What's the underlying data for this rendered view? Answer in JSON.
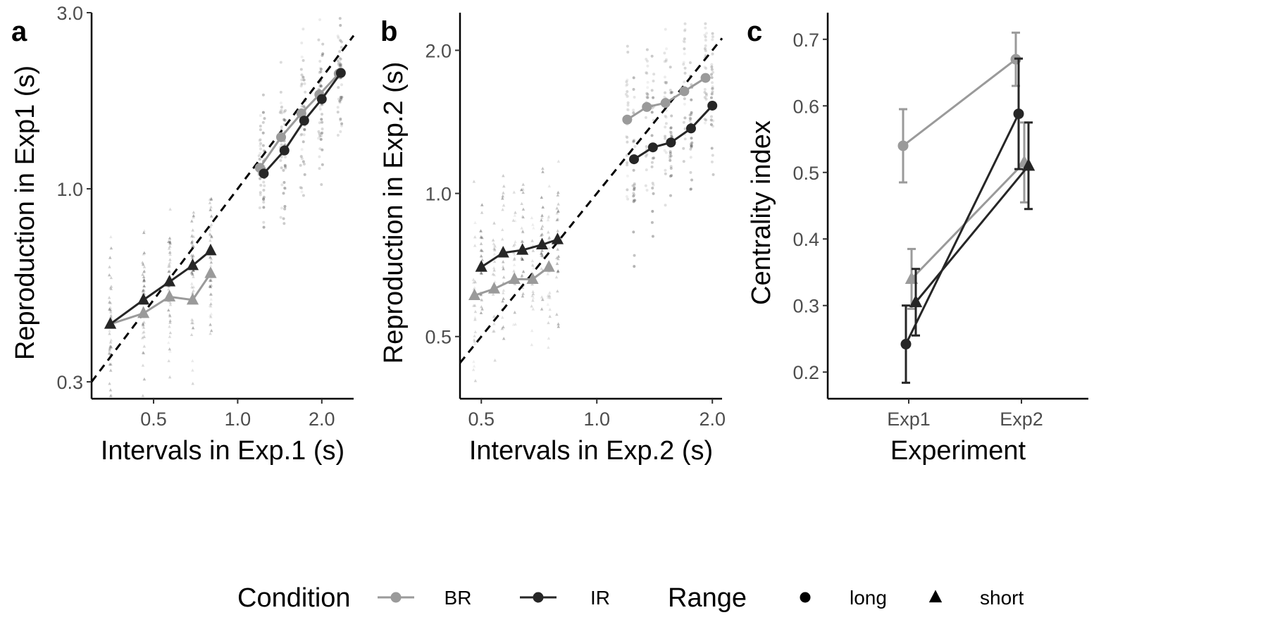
{
  "colors": {
    "BR": "#9a9a9a",
    "IR": "#262626",
    "axis": "#000000",
    "tick_text": "#4d4d4d"
  },
  "legend": {
    "condition_title": "Condition",
    "condition_items": [
      {
        "label": "BR",
        "key": "BR"
      },
      {
        "label": "IR",
        "key": "IR"
      }
    ],
    "range_title": "Range",
    "range_items": [
      {
        "label": "long",
        "shape": "circle"
      },
      {
        "label": "short",
        "shape": "triangle"
      }
    ]
  },
  "chart_data": [
    {
      "panel": "a",
      "type": "line",
      "scale": "log-log",
      "xlabel": "Intervals in Exp.1 (s)",
      "ylabel": "Reproduction in Exp1 (s)",
      "xlim": [
        0.3,
        2.6
      ],
      "ylim": [
        0.27,
        3.0
      ],
      "xticks": [
        0.5,
        1.0,
        2.0
      ],
      "xtick_labels": [
        "0.5",
        "1.0",
        "2.0"
      ],
      "yticks": [
        0.3,
        1.0,
        3.0
      ],
      "ytick_labels": [
        "0.3",
        "1.0",
        "3.0"
      ],
      "identity_line": true,
      "trial_scatter": "individual trial reproductions drawn as faint grey points around each interval",
      "series": [
        {
          "condition": "BR",
          "range": "short",
          "x": [
            0.35,
            0.46,
            0.57,
            0.69,
            0.8
          ],
          "y": [
            0.43,
            0.46,
            0.51,
            0.5,
            0.59
          ]
        },
        {
          "condition": "IR",
          "range": "short",
          "x": [
            0.35,
            0.46,
            0.57,
            0.69,
            0.8
          ],
          "y": [
            0.43,
            0.5,
            0.56,
            0.62,
            0.68
          ]
        },
        {
          "condition": "BR",
          "range": "long",
          "x": [
            1.2,
            1.43,
            1.69,
            1.96,
            2.3
          ],
          "y": [
            1.14,
            1.38,
            1.6,
            1.8,
            2.05
          ]
        },
        {
          "condition": "IR",
          "range": "long",
          "x": [
            1.24,
            1.47,
            1.73,
            2.0,
            2.34
          ],
          "y": [
            1.1,
            1.27,
            1.53,
            1.75,
            2.06
          ]
        }
      ]
    },
    {
      "panel": "b",
      "type": "line",
      "scale": "log-log",
      "xlabel": "Intervals in Exp.2 (s)",
      "ylabel": "Reproduction in Exp.2 (s)",
      "xlim": [
        0.44,
        2.12
      ],
      "ylim": [
        0.37,
        2.4
      ],
      "xticks": [
        0.5,
        1.0,
        2.0
      ],
      "xtick_labels": [
        "0.5",
        "1.0",
        "2.0"
      ],
      "yticks": [
        0.5,
        1.0,
        2.0
      ],
      "ytick_labels": [
        "0.5",
        "1.0",
        "2.0"
      ],
      "identity_line": true,
      "trial_scatter": "individual trial reproductions drawn as faint grey points around each interval",
      "series": [
        {
          "condition": "BR",
          "range": "short",
          "x": [
            0.48,
            0.54,
            0.61,
            0.68,
            0.75
          ],
          "y": [
            0.61,
            0.63,
            0.66,
            0.66,
            0.7
          ]
        },
        {
          "condition": "IR",
          "range": "short",
          "x": [
            0.5,
            0.57,
            0.64,
            0.72,
            0.79
          ],
          "y": [
            0.7,
            0.75,
            0.76,
            0.78,
            0.8
          ]
        },
        {
          "condition": "BR",
          "range": "long",
          "x": [
            1.2,
            1.35,
            1.51,
            1.69,
            1.92
          ],
          "y": [
            1.43,
            1.52,
            1.55,
            1.64,
            1.75
          ]
        },
        {
          "condition": "IR",
          "range": "long",
          "x": [
            1.25,
            1.4,
            1.56,
            1.76,
            2.0
          ],
          "y": [
            1.18,
            1.25,
            1.28,
            1.37,
            1.53
          ]
        }
      ]
    },
    {
      "panel": "c",
      "type": "line",
      "xlabel": "Experiment",
      "ylabel": "Centrality index",
      "categories": [
        "Exp1",
        "Exp2"
      ],
      "ylim": [
        0.16,
        0.74
      ],
      "yticks": [
        0.2,
        0.3,
        0.4,
        0.5,
        0.6,
        0.7
      ],
      "ytick_labels": [
        "0.2",
        "0.3",
        "0.4",
        "0.5",
        "0.6",
        "0.7"
      ],
      "series": [
        {
          "condition": "BR",
          "range": "long",
          "values": [
            0.54,
            0.67
          ],
          "errors": [
            0.055,
            0.04
          ]
        },
        {
          "condition": "BR",
          "range": "short",
          "values": [
            0.34,
            0.515
          ],
          "errors": [
            0.045,
            0.06
          ]
        },
        {
          "condition": "IR",
          "range": "long",
          "values": [
            0.242,
            0.588
          ],
          "errors": [
            0.058,
            0.083
          ]
        },
        {
          "condition": "IR",
          "range": "short",
          "values": [
            0.305,
            0.51
          ],
          "errors": [
            0.05,
            0.065
          ]
        }
      ]
    }
  ]
}
